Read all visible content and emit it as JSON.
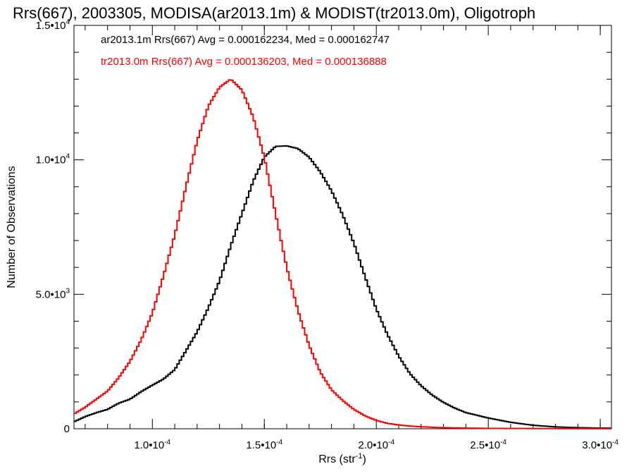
{
  "chart_data": {
    "type": "histogram-step",
    "title": "Rrs(667), 2003305, MODISA(ar2013.1m) & MODIST(tr2013.0m), Oligotroph",
    "xlabel": "Rrs (str",
    "xlabel_sup": "-1",
    "xlabel_end": ")",
    "ylabel": "Number of Observations",
    "xlim": [
      6.5e-05,
      0.000305
    ],
    "ylim": [
      0,
      15000
    ],
    "grid": false,
    "x_ticks": [
      {
        "value": 0.0001,
        "mant": "1.0•10",
        "exp": "-4"
      },
      {
        "value": 0.00015,
        "mant": "1.5•10",
        "exp": "-4"
      },
      {
        "value": 0.0002,
        "mant": "2.0•10",
        "exp": "-4"
      },
      {
        "value": 0.00025,
        "mant": "2.5•10",
        "exp": "-4"
      },
      {
        "value": 0.0003,
        "mant": "3.0•10",
        "exp": "-4"
      }
    ],
    "y_ticks": [
      {
        "value": 0,
        "mant": "0",
        "exp": ""
      },
      {
        "value": 5000,
        "mant": "5.0•10",
        "exp": "3"
      },
      {
        "value": 10000,
        "mant": "1.0•10",
        "exp": "4"
      },
      {
        "value": 15000,
        "mant": "1.5•10",
        "exp": "4"
      }
    ],
    "series": [
      {
        "name": "ar2013.1m",
        "color": "#000000",
        "stats": "ar2013.1m Rrs(667) Avg = 0.000162234, Med = 0.000162747",
        "x": [
          6.5e-05,
          7e-05,
          7.5e-05,
          8e-05,
          8.5e-05,
          9e-05,
          9.5e-05,
          0.0001,
          0.000105,
          0.00011,
          0.000115,
          0.00012,
          0.000125,
          0.00013,
          0.000135,
          0.00014,
          0.000145,
          0.00015,
          0.000155,
          0.00016,
          0.000165,
          0.00017,
          0.000175,
          0.00018,
          0.000185,
          0.00019,
          0.000195,
          0.0002,
          0.000205,
          0.00021,
          0.000215,
          0.00022,
          0.000225,
          0.00023,
          0.000235,
          0.00024,
          0.00025,
          0.00026,
          0.00027,
          0.00028,
          0.00029,
          0.0003,
          0.000305
        ],
        "y": [
          260,
          450,
          600,
          720,
          950,
          1100,
          1380,
          1620,
          1850,
          2200,
          2900,
          3600,
          4500,
          5500,
          6800,
          8000,
          9200,
          10100,
          10500,
          10520,
          10420,
          10100,
          9550,
          8850,
          7950,
          6900,
          5650,
          4450,
          3500,
          2700,
          2050,
          1600,
          1250,
          980,
          770,
          600,
          400,
          240,
          130,
          70,
          40,
          25,
          20
        ]
      },
      {
        "name": "tr2013.0m",
        "color": "#ff0000",
        "stats": "tr2013.0m Rrs(667) Avg = 0.000136203, Med = 0.000136888",
        "x": [
          6.5e-05,
          7e-05,
          7.5e-05,
          8e-05,
          8.5e-05,
          9e-05,
          9.5e-05,
          0.0001,
          0.000105,
          0.00011,
          0.000115,
          0.00012,
          0.000125,
          0.00013,
          0.000135,
          0.00014,
          0.000145,
          0.00015,
          0.000155,
          0.00016,
          0.000165,
          0.00017,
          0.000175,
          0.00018,
          0.000185,
          0.00019,
          0.000195,
          0.0002,
          0.000205,
          0.00021,
          0.000215,
          0.00022,
          0.000225,
          0.00023,
          0.00024,
          0.00025,
          0.00026,
          0.00028,
          0.000305
        ],
        "y": [
          550,
          800,
          1100,
          1400,
          1900,
          2500,
          3300,
          4300,
          5700,
          7200,
          9000,
          10700,
          12000,
          12700,
          13000,
          12600,
          11600,
          10100,
          8000,
          6000,
          4400,
          3100,
          2100,
          1450,
          1050,
          720,
          480,
          310,
          200,
          140,
          100,
          75,
          55,
          40,
          25,
          15,
          10,
          5,
          3
        ]
      }
    ]
  }
}
